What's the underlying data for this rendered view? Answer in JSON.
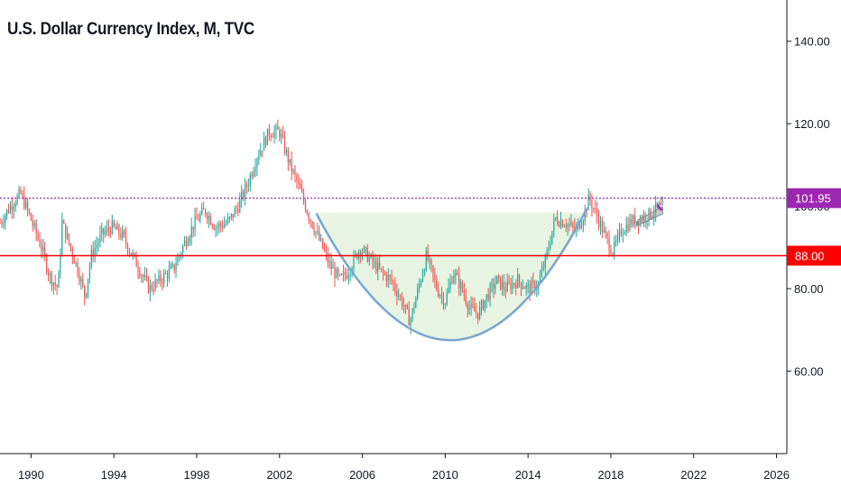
{
  "chart_data": {
    "type": "candlestick",
    "title": "U.S. Dollar Currency Index, M, TVC",
    "y_axis": {
      "range": [
        40,
        150
      ],
      "ticks": [
        60,
        80,
        100,
        120,
        140
      ],
      "tick_labels": [
        "60.00",
        "80.00",
        "100.00",
        "120.00",
        "140.00"
      ]
    },
    "x_axis": {
      "range": [
        1988.5,
        2026.5
      ],
      "ticks": [
        1990,
        1994,
        1998,
        2002,
        2006,
        2010,
        2014,
        2018,
        2022,
        2026
      ],
      "tick_labels": [
        "1990",
        "1994",
        "1998",
        "2002",
        "2006",
        "2010",
        "2014",
        "2018",
        "2022",
        "2026"
      ]
    },
    "price_levels": [
      {
        "name": "last-price",
        "value": 101.95,
        "label": "101.95",
        "color": "#9c27b0",
        "style": "dotted"
      },
      {
        "name": "support",
        "value": 88.0,
        "label": "88.00",
        "color": "#ff0000",
        "style": "solid"
      }
    ],
    "annotations": {
      "cup_arc": {
        "start": [
          2003.8,
          98.0
        ],
        "bottom": [
          2010.3,
          67.5
        ],
        "end": [
          2016.8,
          99.0
        ]
      },
      "cup_fill_top": 98.5,
      "handle_channel": {
        "start": [
          2019.3,
          96.0
        ],
        "end": [
          2020.5,
          99.0
        ]
      }
    },
    "series": {
      "keypoints": [
        [
          1988.5,
          96
        ],
        [
          1989.0,
          100
        ],
        [
          1989.5,
          103
        ],
        [
          1989.9,
          98
        ],
        [
          1990.5,
          90
        ],
        [
          1990.9,
          83
        ],
        [
          1991.3,
          80
        ],
        [
          1991.5,
          96
        ],
        [
          1991.9,
          90
        ],
        [
          1992.3,
          84
        ],
        [
          1992.6,
          78
        ],
        [
          1992.9,
          88
        ],
        [
          1993.4,
          93
        ],
        [
          1993.9,
          95
        ],
        [
          1994.4,
          93
        ],
        [
          1994.9,
          88
        ],
        [
          1995.3,
          84
        ],
        [
          1995.7,
          80
        ],
        [
          1996.2,
          82
        ],
        [
          1996.9,
          85
        ],
        [
          1997.4,
          91
        ],
        [
          1997.9,
          96
        ],
        [
          1998.4,
          99
        ],
        [
          1998.9,
          95
        ],
        [
          1999.5,
          96
        ],
        [
          2000.0,
          100
        ],
        [
          2000.5,
          106
        ],
        [
          2000.9,
          112
        ],
        [
          2001.5,
          118
        ],
        [
          2002.0,
          118
        ],
        [
          2002.5,
          110
        ],
        [
          2002.9,
          105
        ],
        [
          2003.4,
          98
        ],
        [
          2003.9,
          92
        ],
        [
          2004.4,
          86
        ],
        [
          2004.9,
          82
        ],
        [
          2005.3,
          84
        ],
        [
          2005.9,
          90
        ],
        [
          2006.4,
          87
        ],
        [
          2006.9,
          84
        ],
        [
          2007.4,
          82
        ],
        [
          2007.9,
          77
        ],
        [
          2008.3,
          72
        ],
        [
          2008.7,
          80
        ],
        [
          2009.1,
          88
        ],
        [
          2009.6,
          80
        ],
        [
          2010.0,
          77
        ],
        [
          2010.4,
          84
        ],
        [
          2010.8,
          80
        ],
        [
          2011.2,
          75
        ],
        [
          2011.6,
          74
        ],
        [
          2012.0,
          78
        ],
        [
          2012.5,
          82
        ],
        [
          2012.9,
          80
        ],
        [
          2013.5,
          82
        ],
        [
          2014.0,
          80
        ],
        [
          2014.5,
          81
        ],
        [
          2014.9,
          88
        ],
        [
          2015.3,
          97
        ],
        [
          2015.8,
          96
        ],
        [
          2016.3,
          94
        ],
        [
          2016.7,
          98
        ],
        [
          2016.95,
          102
        ],
        [
          2017.3,
          98
        ],
        [
          2017.7,
          93
        ],
        [
          2018.1,
          89
        ],
        [
          2018.5,
          94
        ],
        [
          2018.9,
          96
        ],
        [
          2019.4,
          97
        ],
        [
          2019.9,
          98
        ],
        [
          2020.3,
          100
        ],
        [
          2020.5,
          99
        ]
      ],
      "up_color": "#26a69a",
      "down_color": "#ef5350"
    },
    "fill_color": "#e8f5e3",
    "arc_color": "#7ba7cf"
  }
}
